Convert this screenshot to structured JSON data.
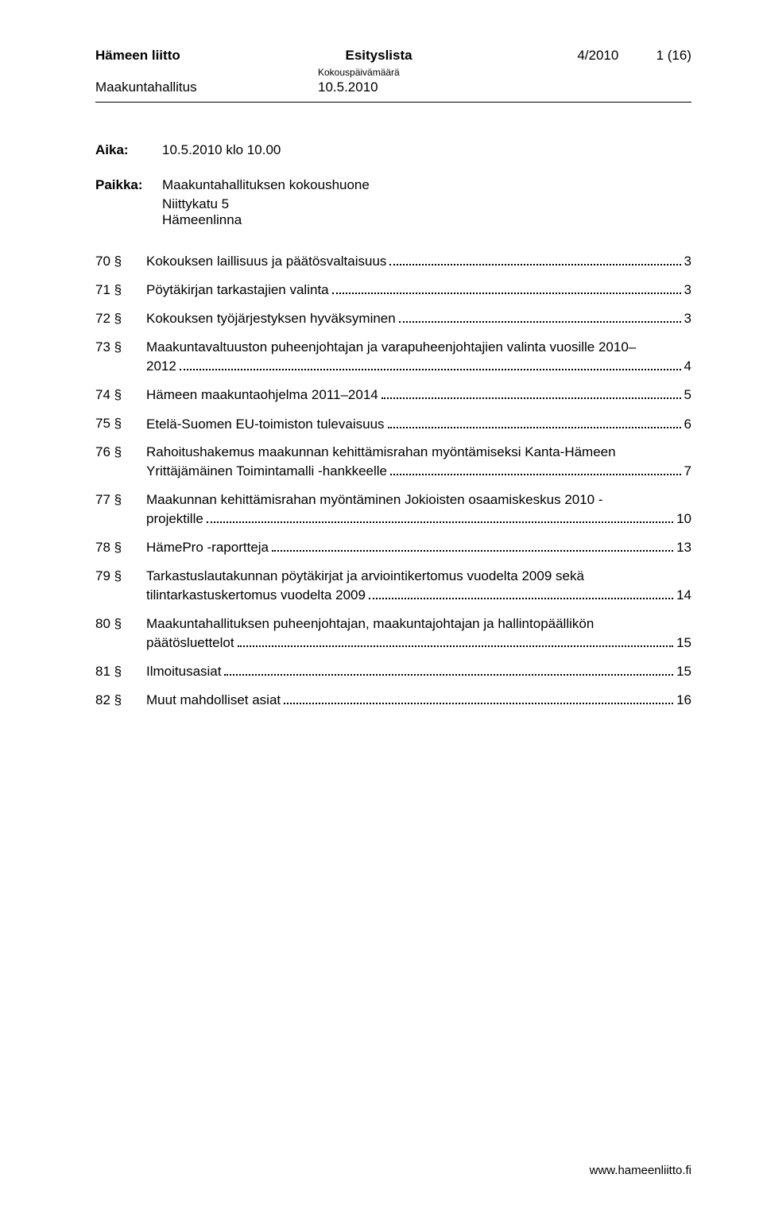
{
  "header": {
    "org": "Hämeen liitto",
    "doc_type": "Esityslista",
    "doc_number": "4/2010",
    "page_indicator": "1 (16)",
    "board": "Maakuntahallitus",
    "date_label": "Kokouspäivämäärä",
    "date": "10.5.2010"
  },
  "meeting": {
    "time_label": "Aika:",
    "time_value": "10.5.2010 klo 10.00",
    "place_label": "Paikka:",
    "place_line1": "Maakuntahallituksen kokoushuone",
    "place_line2": "Niittykatu 5",
    "place_line3": "Hämeenlinna"
  },
  "toc": [
    {
      "num": "70 §",
      "lines": [
        "Kokouksen laillisuus ja päätösvaltaisuus"
      ],
      "page": "3"
    },
    {
      "num": "71 §",
      "lines": [
        "Pöytäkirjan tarkastajien valinta"
      ],
      "page": "3"
    },
    {
      "num": "72 §",
      "lines": [
        "Kokouksen työjärjestyksen hyväksyminen"
      ],
      "page": "3"
    },
    {
      "num": "73 §",
      "lines": [
        "Maakuntavaltuuston puheenjohtajan ja varapuheenjohtajien valinta vuosille 2010–",
        "2012"
      ],
      "page": "4"
    },
    {
      "num": "74 §",
      "lines": [
        "Hämeen maakuntaohjelma 2011–2014"
      ],
      "page": "5"
    },
    {
      "num": "75 §",
      "lines": [
        "Etelä-Suomen EU-toimiston tulevaisuus"
      ],
      "page": "6"
    },
    {
      "num": "76 §",
      "lines": [
        "Rahoitushakemus maakunnan kehittämisrahan myöntämiseksi Kanta-Hämeen",
        "Yrittäjämäinen Toimintamalli -hankkeelle"
      ],
      "page": "7"
    },
    {
      "num": "77 §",
      "lines": [
        "Maakunnan kehittämisrahan myöntäminen Jokioisten osaamiskeskus 2010 -",
        "projektille"
      ],
      "page": "10"
    },
    {
      "num": "78 §",
      "lines": [
        "HämePro -raportteja"
      ],
      "page": "13"
    },
    {
      "num": "79 §",
      "lines": [
        "Tarkastuslautakunnan pöytäkirjat ja arviointikertomus vuodelta 2009 sekä",
        "tilintarkastuskertomus vuodelta 2009"
      ],
      "page": "14"
    },
    {
      "num": "80 §",
      "lines": [
        "Maakuntahallituksen puheenjohtajan, maakuntajohtajan ja hallintopäällikön",
        "päätösluettelot"
      ],
      "page": "15"
    },
    {
      "num": "81 §",
      "lines": [
        "Ilmoitusasiat"
      ],
      "page": "15"
    },
    {
      "num": "82 §",
      "lines": [
        "Muut mahdolliset asiat"
      ],
      "page": "16"
    }
  ],
  "footer": {
    "url": "www.hameenliitto.fi"
  }
}
